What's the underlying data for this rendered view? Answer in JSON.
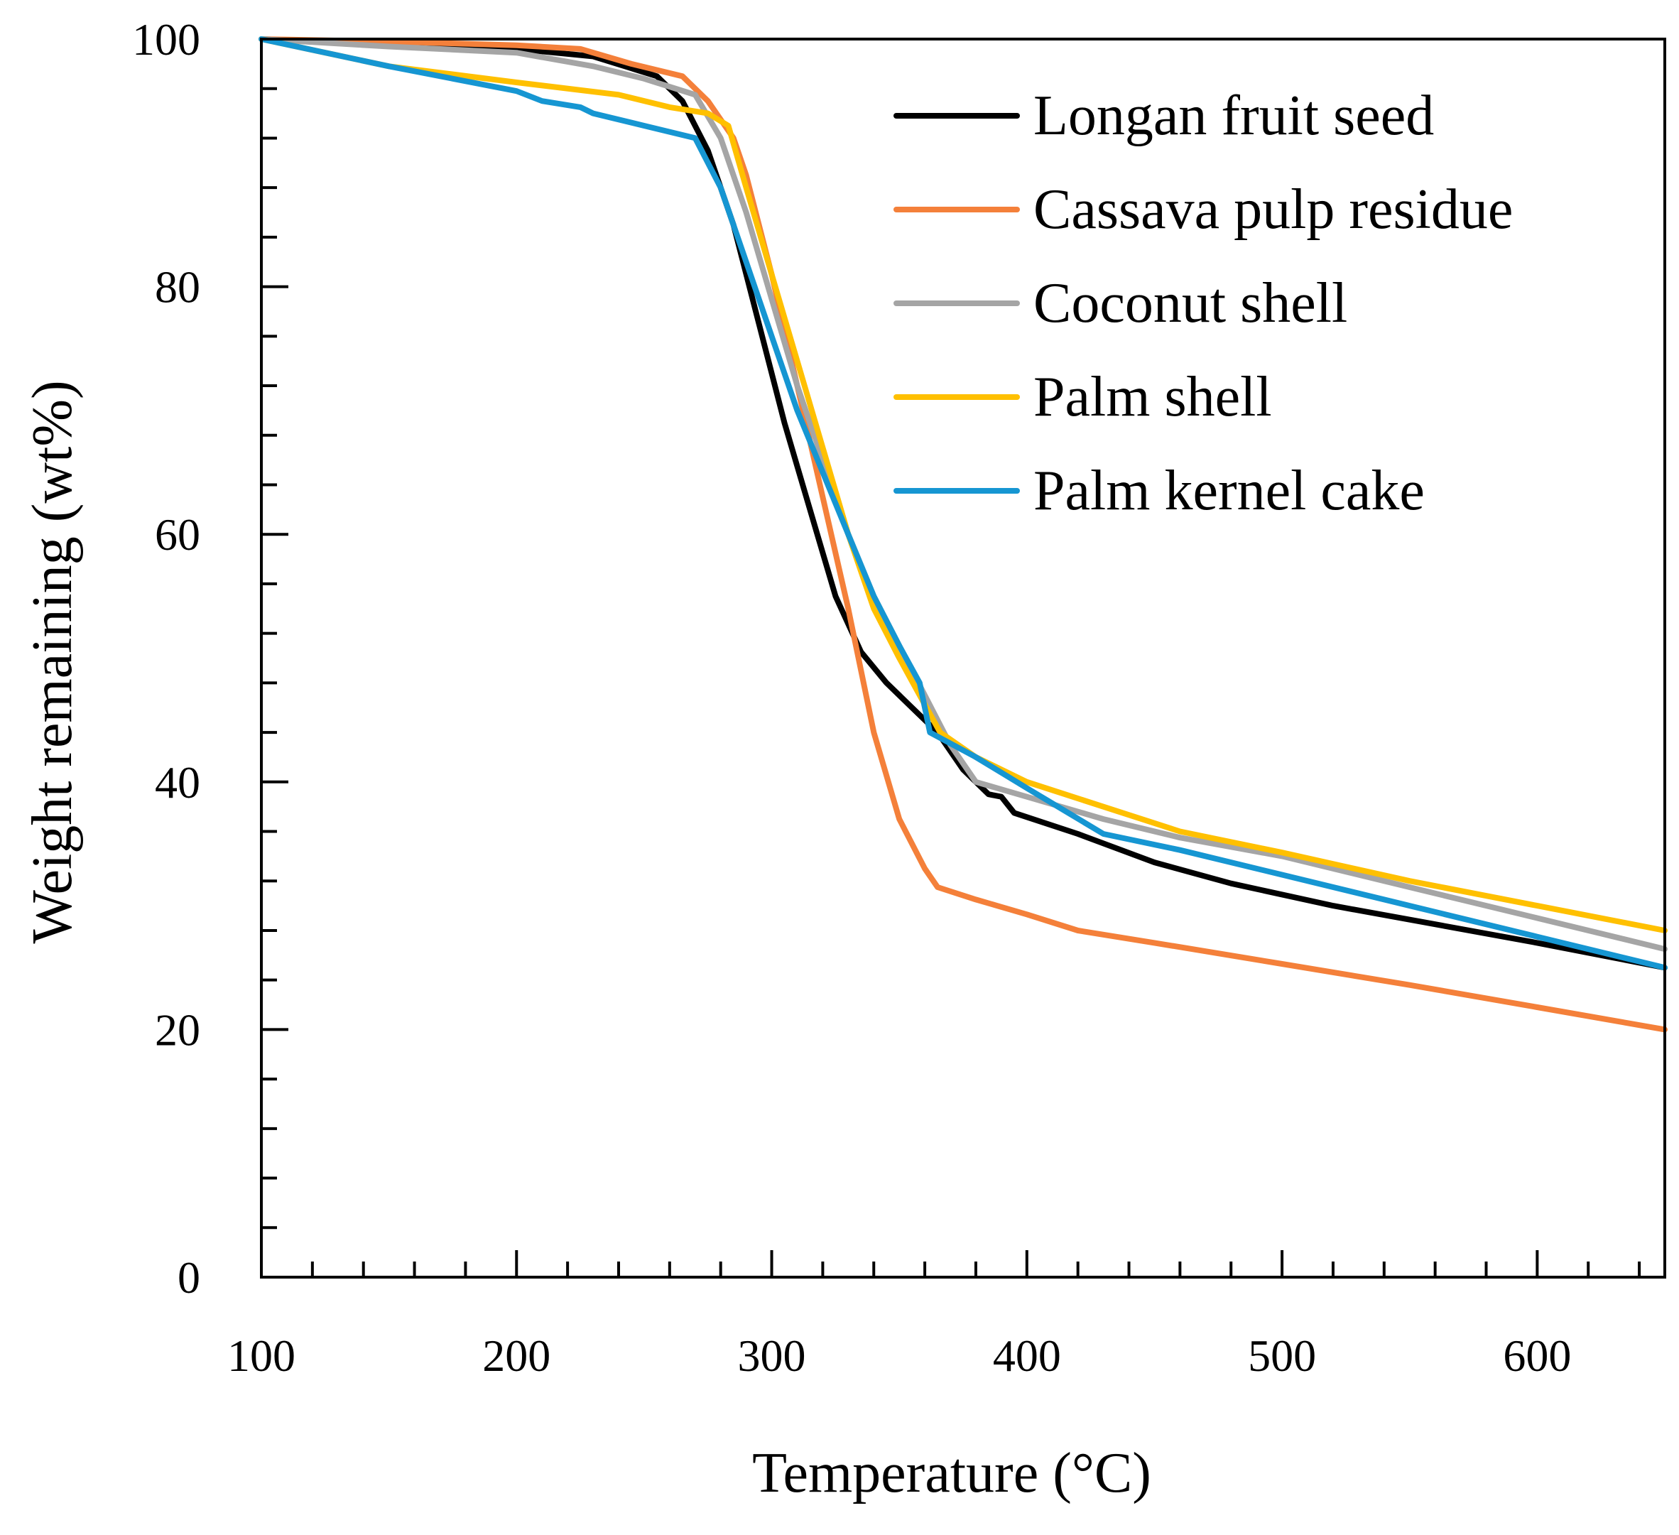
{
  "chart_data": {
    "type": "line",
    "title": "",
    "xlabel": "Temperature (°C)",
    "ylabel": "Weight remaining (wt%)",
    "xlim": [
      100,
      650
    ],
    "ylim": [
      0,
      100
    ],
    "x_ticks": [
      100,
      200,
      300,
      400,
      500,
      600
    ],
    "x_tick_labels": [
      "100",
      "200",
      "300",
      "400",
      "500",
      "600"
    ],
    "x_minor_step": 20,
    "y_ticks": [
      0,
      20,
      40,
      60,
      80,
      100
    ],
    "y_tick_labels": [
      "0",
      "20",
      "40",
      "60",
      "80",
      "100"
    ],
    "y_minor_step": 4,
    "legend_position": "top-right",
    "series": [
      {
        "name": "Longan fruit seed",
        "color": "#000000",
        "points": [
          [
            100,
            100
          ],
          [
            150,
            99.6
          ],
          [
            200,
            99.2
          ],
          [
            230,
            98.6
          ],
          [
            255,
            97
          ],
          [
            265,
            95
          ],
          [
            275,
            91
          ],
          [
            285,
            85
          ],
          [
            295,
            77
          ],
          [
            305,
            69
          ],
          [
            315,
            62
          ],
          [
            325,
            55
          ],
          [
            335,
            50.5
          ],
          [
            345,
            48
          ],
          [
            355,
            46
          ],
          [
            365,
            44
          ],
          [
            375,
            41
          ],
          [
            385,
            39
          ],
          [
            390,
            38.8
          ],
          [
            395,
            37.5
          ],
          [
            420,
            35.8
          ],
          [
            450,
            33.5
          ],
          [
            480,
            31.8
          ],
          [
            520,
            30
          ],
          [
            560,
            28.5
          ],
          [
            600,
            27
          ],
          [
            650,
            25
          ]
        ]
      },
      {
        "name": "Cassava pulp residue",
        "color": "#F4803A",
        "points": [
          [
            100,
            100
          ],
          [
            150,
            99.8
          ],
          [
            200,
            99.5
          ],
          [
            225,
            99.2
          ],
          [
            245,
            98
          ],
          [
            265,
            97
          ],
          [
            275,
            95
          ],
          [
            285,
            92
          ],
          [
            290,
            89
          ],
          [
            300,
            81
          ],
          [
            310,
            72
          ],
          [
            320,
            63
          ],
          [
            330,
            54
          ],
          [
            340,
            44
          ],
          [
            350,
            37
          ],
          [
            360,
            33
          ],
          [
            365,
            31.5
          ],
          [
            380,
            30.5
          ],
          [
            400,
            29.3
          ],
          [
            420,
            28
          ],
          [
            450,
            27
          ],
          [
            500,
            25.3
          ],
          [
            550,
            23.6
          ],
          [
            600,
            21.8
          ],
          [
            650,
            20
          ]
        ]
      },
      {
        "name": "Coconut shell",
        "color": "#A5A5A5",
        "points": [
          [
            100,
            100
          ],
          [
            150,
            99.4
          ],
          [
            200,
            98.9
          ],
          [
            230,
            97.8
          ],
          [
            250,
            96.8
          ],
          [
            270,
            95.5
          ],
          [
            280,
            92
          ],
          [
            290,
            86
          ],
          [
            300,
            79
          ],
          [
            310,
            72
          ],
          [
            320,
            66
          ],
          [
            330,
            60
          ],
          [
            340,
            55
          ],
          [
            350,
            51
          ],
          [
            360,
            47
          ],
          [
            370,
            43
          ],
          [
            380,
            40
          ],
          [
            400,
            38.8
          ],
          [
            430,
            37
          ],
          [
            460,
            35.5
          ],
          [
            500,
            34
          ],
          [
            550,
            31.5
          ],
          [
            600,
            29
          ],
          [
            650,
            26.5
          ]
        ]
      },
      {
        "name": "Palm shell",
        "color": "#FFC000",
        "points": [
          [
            100,
            100
          ],
          [
            150,
            97.8
          ],
          [
            200,
            96.5
          ],
          [
            240,
            95.5
          ],
          [
            260,
            94.5
          ],
          [
            275,
            94
          ],
          [
            283,
            93
          ],
          [
            290,
            88
          ],
          [
            300,
            81
          ],
          [
            310,
            74
          ],
          [
            320,
            67
          ],
          [
            330,
            60
          ],
          [
            340,
            54
          ],
          [
            350,
            50
          ],
          [
            358,
            47
          ],
          [
            366,
            44
          ],
          [
            380,
            42
          ],
          [
            400,
            40
          ],
          [
            430,
            38
          ],
          [
            460,
            36
          ],
          [
            500,
            34.3
          ],
          [
            550,
            32
          ],
          [
            600,
            30
          ],
          [
            650,
            28
          ]
        ]
      },
      {
        "name": "Palm kernel cake",
        "color": "#1696D2",
        "points": [
          [
            100,
            100
          ],
          [
            150,
            97.8
          ],
          [
            200,
            95.8
          ],
          [
            210,
            95
          ],
          [
            225,
            94.5
          ],
          [
            230,
            94
          ],
          [
            250,
            93
          ],
          [
            270,
            92
          ],
          [
            280,
            88
          ],
          [
            290,
            82
          ],
          [
            300,
            76
          ],
          [
            310,
            70
          ],
          [
            320,
            65
          ],
          [
            330,
            60
          ],
          [
            340,
            55
          ],
          [
            350,
            51
          ],
          [
            358,
            48
          ],
          [
            362,
            44
          ],
          [
            380,
            42
          ],
          [
            400,
            39.5
          ],
          [
            430,
            35.8
          ],
          [
            460,
            34.5
          ],
          [
            500,
            32.5
          ],
          [
            550,
            30
          ],
          [
            600,
            27.5
          ],
          [
            650,
            25
          ]
        ]
      }
    ]
  }
}
